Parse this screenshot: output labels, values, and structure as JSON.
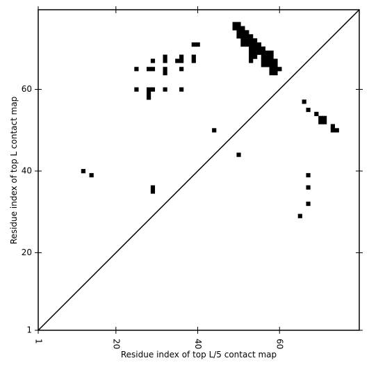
{
  "chart_data": {
    "type": "scatter",
    "x_label": "Residue index of top L/5 contact map",
    "y_label": "Residue index of top L contact map",
    "xlim": [
      1,
      79.5
    ],
    "ylim": [
      1,
      79.5
    ],
    "xticks": [
      1,
      20,
      40,
      60
    ],
    "yticks": [
      1,
      20,
      40,
      60
    ],
    "diagonal": true,
    "series": [
      {
        "color": "#000000",
        "x": [
          25,
          25,
          28,
          29,
          29,
          28,
          29,
          28,
          28,
          32,
          32,
          32,
          32,
          32,
          35,
          36,
          36,
          36,
          36,
          39,
          40,
          39,
          39,
          49,
          50,
          49,
          50,
          51,
          50,
          51,
          52,
          50,
          51,
          52,
          53,
          51,
          52,
          53,
          54,
          51,
          52,
          53,
          54,
          55,
          53,
          54,
          55,
          56,
          53,
          54,
          55,
          56,
          57,
          58,
          53,
          54,
          56,
          57,
          58,
          53,
          56,
          57,
          58,
          59,
          56,
          57,
          58,
          59,
          58,
          59,
          60,
          58,
          59,
          44,
          50,
          12,
          14,
          29,
          29,
          66,
          67,
          69,
          70,
          71,
          70,
          71,
          73,
          73,
          74,
          67,
          67,
          67,
          65
        ],
        "y": [
          65,
          60,
          65,
          65,
          67,
          60,
          60,
          59,
          58,
          68,
          67,
          65,
          64,
          60,
          67,
          67,
          68,
          65,
          60,
          71,
          71,
          68,
          67,
          76,
          76,
          75,
          75,
          75,
          74,
          74,
          74,
          73,
          73,
          73,
          73,
          72,
          72,
          72,
          72,
          71,
          71,
          71,
          71,
          71,
          70,
          70,
          70,
          70,
          69,
          69,
          69,
          69,
          69,
          69,
          68,
          68,
          68,
          68,
          68,
          67,
          67,
          67,
          67,
          67,
          66,
          66,
          66,
          66,
          65,
          65,
          65,
          64,
          64,
          50,
          44,
          40,
          39,
          36,
          35,
          57,
          55,
          54,
          53,
          53,
          52,
          52,
          51,
          50,
          50,
          39,
          36,
          32,
          29
        ]
      }
    ]
  }
}
